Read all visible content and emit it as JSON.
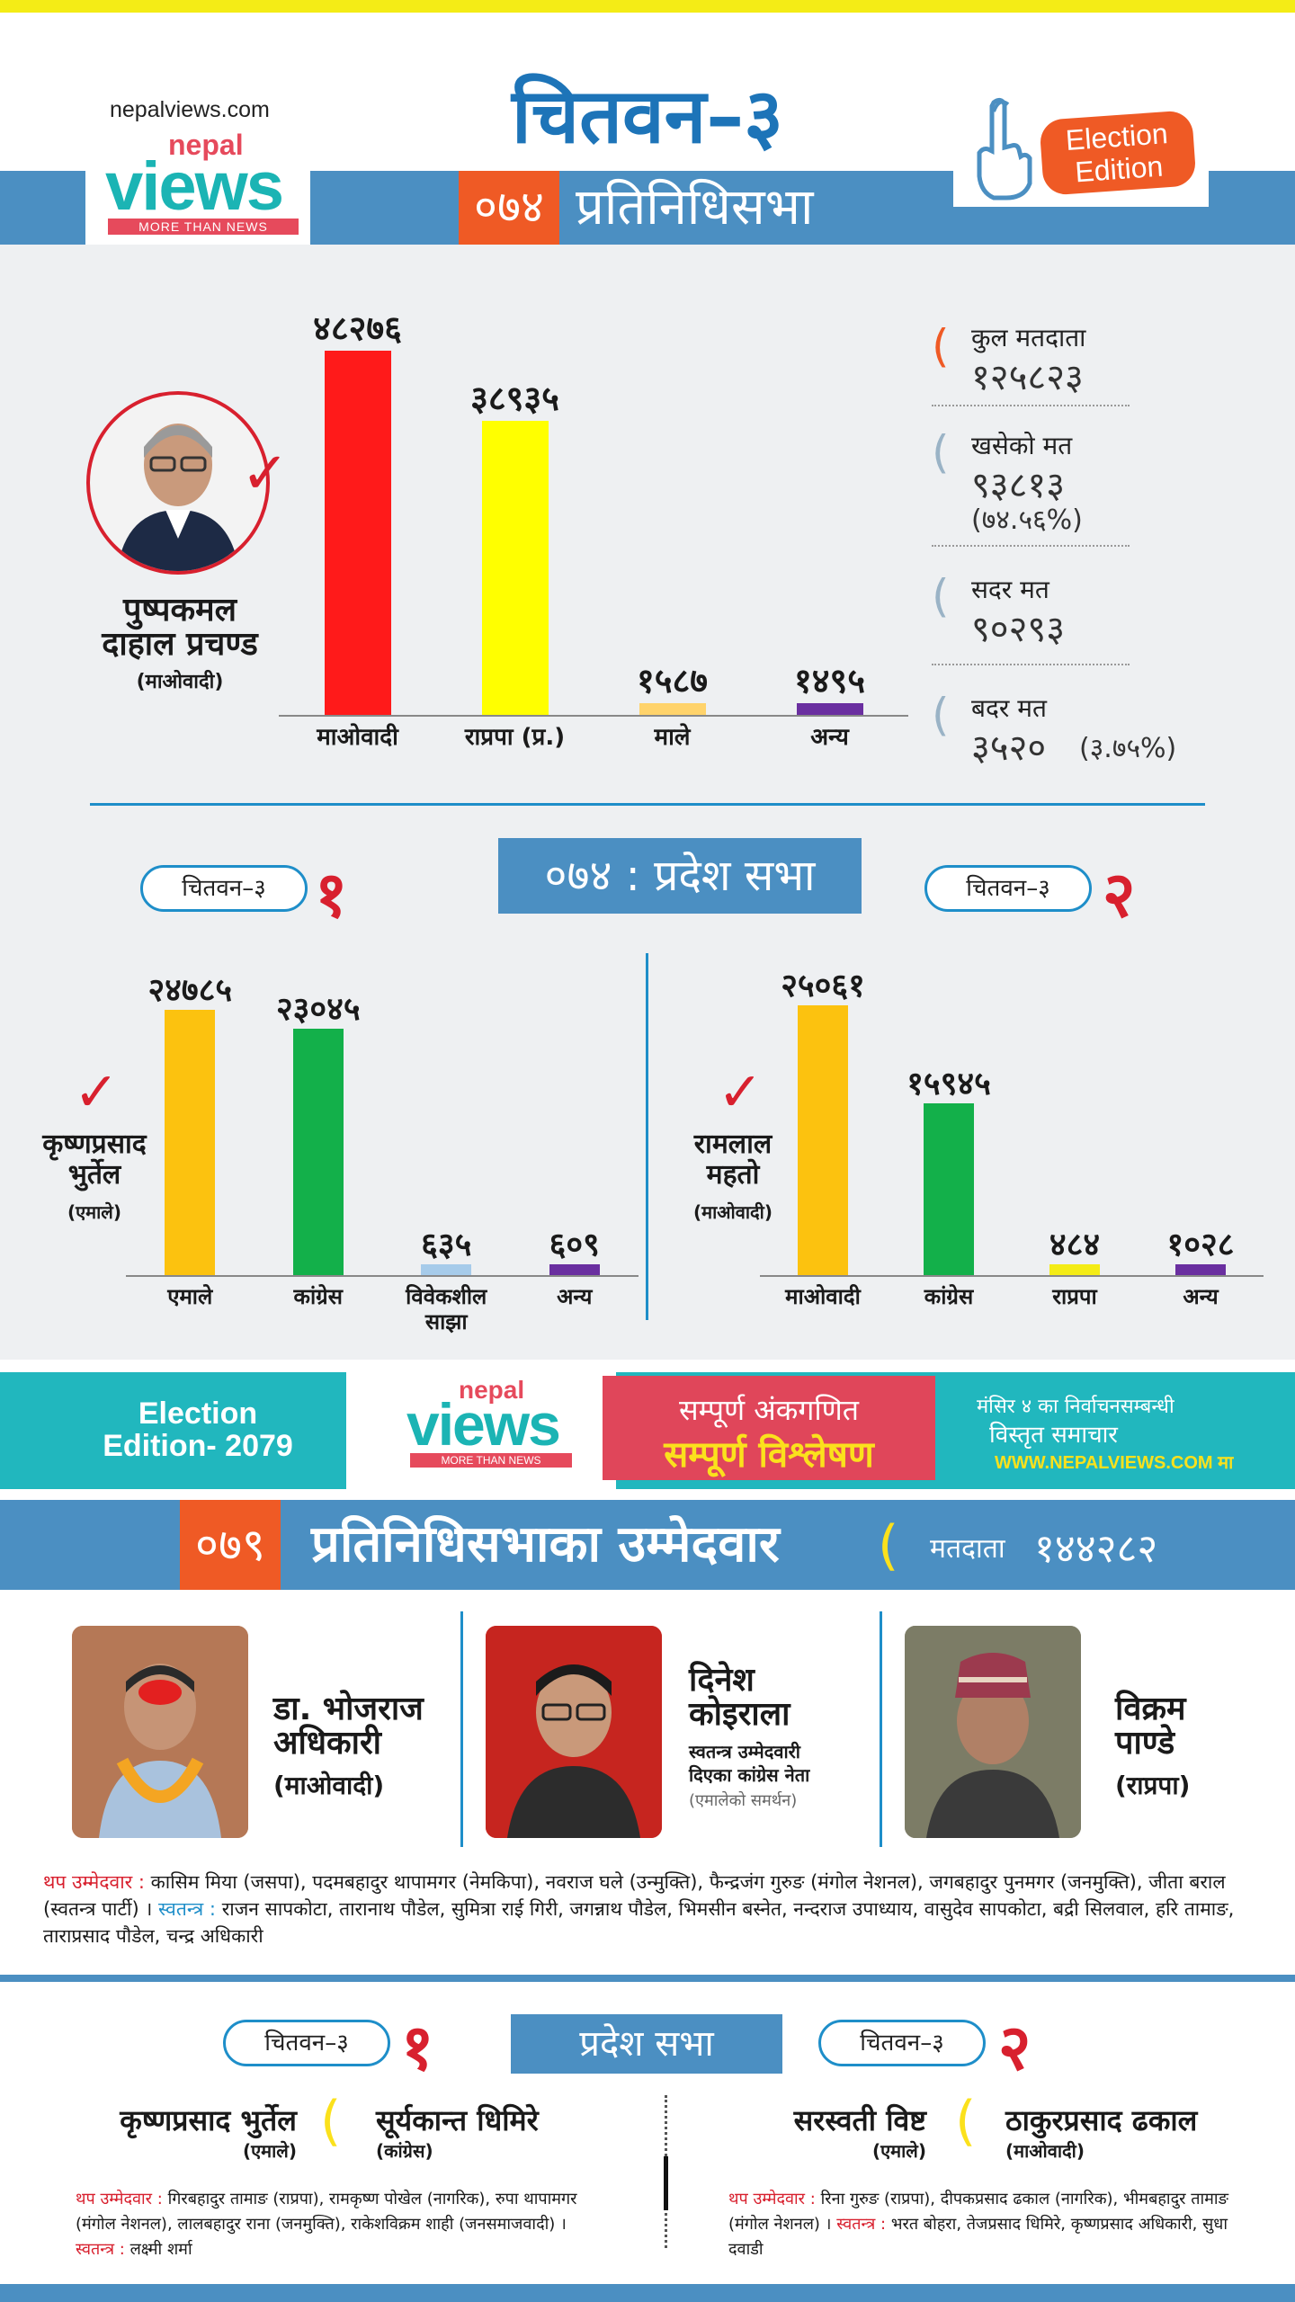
{
  "header": {
    "site_url": "nepalviews.com",
    "logo_top": "nepal",
    "logo_main": "views",
    "logo_tagline": "MORE THAN NEWS",
    "title": "चितवन–३",
    "year": "०७४",
    "section_title": "प्रतिनिधिसभा",
    "badge_line1": "Election",
    "badge_line2": "Edition"
  },
  "hor_2074": {
    "winner_name_line1": "पुष्पकमल",
    "winner_name_line2": "दाहाल प्रचण्ड",
    "winner_party": "(माओवादी)",
    "chart_data": {
      "type": "bar",
      "categories": [
        "माओवादी",
        "राप्रपा (प्र.)",
        "माले",
        "अन्य"
      ],
      "values": [
        48276,
        38935,
        1587,
        1495
      ],
      "value_labels": [
        "४८२७६",
        "३८९३५",
        "१५८७",
        "१४९५"
      ],
      "colors": [
        "#ff1a1a",
        "#ffff00",
        "#ffd36b",
        "#6a2fa0"
      ]
    },
    "stats": {
      "total_voters_label": "कुल मतदाता",
      "total_voters": "१२५८२३",
      "cast_label": "खसेको मत",
      "cast": "९३८१३",
      "cast_pct": "(७४.५६%)",
      "valid_label": "सदर मत",
      "valid": "९०२९३",
      "invalid_label": "बदर मत",
      "invalid": "३५२०",
      "invalid_pct": "(३.७५%)"
    }
  },
  "provincial_2074": {
    "title": "०७४ : प्रदेश सभा",
    "left": {
      "constituency": "चितवन–३",
      "number": "१",
      "winner_line1": "कृष्णप्रसाद",
      "winner_line2": "भुर्तेल",
      "winner_party": "(एमाले)",
      "chart_data": {
        "type": "bar",
        "categories": [
          "एमाले",
          "कांग्रेस",
          "विवेकशील साझा",
          "अन्य"
        ],
        "values": [
          24785,
          23045,
          635,
          609
        ],
        "value_labels": [
          "२४७८५",
          "२३०४५",
          "६३५",
          "६०९"
        ],
        "colors": [
          "#fcc20f",
          "#13b04a",
          "#a6cbea",
          "#6a2fa0"
        ]
      }
    },
    "right": {
      "constituency": "चितवन–३",
      "number": "२",
      "winner_line1": "रामलाल",
      "winner_line2": "महतो",
      "winner_party": "(माओवादी)",
      "chart_data": {
        "type": "bar",
        "categories": [
          "माओवादी",
          "कांग्रेस",
          "राप्रपा",
          "अन्य"
        ],
        "values": [
          25061,
          15945,
          484,
          1028
        ],
        "value_labels": [
          "२५०६१",
          "१५९४५",
          "४८४",
          "१०२८"
        ],
        "colors": [
          "#fcc20f",
          "#13b04a",
          "#f4ec16",
          "#6a2fa0"
        ]
      }
    }
  },
  "banner": {
    "edition_line1": "Election",
    "edition_line2": "Edition- 2079",
    "logo_top": "nepal",
    "logo_main": "views",
    "logo_tagline": "MORE THAN NEWS",
    "headline1": "सम्पूर्ण अंकगणित",
    "headline2": "सम्पूर्ण विश्लेषण",
    "right_line1": "मंसिर ४ का निर्वाचनसम्बन्धी",
    "right_line2": "विस्तृत समाचार",
    "right_url": "WWW.NEPALVIEWS.COM मा"
  },
  "hor_2079": {
    "year": "०७९",
    "title": "प्रतिनिधिसभाका उम्मेदवार",
    "voters_label": "मतदाता",
    "voters": "१४४२८२",
    "candidates": [
      {
        "name_line1": "डा. भोजराज",
        "name_line2": "अधिकारी",
        "party": "(माओवादी)"
      },
      {
        "name_line1": "दिनेश",
        "name_line2": "कोइराला",
        "note_line1": "स्वतन्त्र उम्मेदवारी",
        "note_line2": "दिएका कांग्रेस नेता",
        "support": "(एमालेको समर्थन)"
      },
      {
        "name_line1": "विक्रम",
        "name_line2": "पाण्डे",
        "party": "(राप्रपा)"
      }
    ],
    "other_label": "थप उम्मेदवार :",
    "other_text": "कासिम मिया (जसपा), पदमबहादुर थापामगर (नेमकिपा), नवराज घले (उन्मुक्ति), फैन्द्रजंग गुरुङ (मंगोल नेशनल), जगबहादुर पुनमगर (जनमुक्ति), जीता बराल (स्वतन्त्र पार्टी) ।",
    "independent_label": "स्वतन्त्र :",
    "independent_text": "राजन सापकोटा, तारानाथ पौडेल, सुमित्रा राई गिरी, जगन्नाथ पौडेल, भिमसीन बस्नेत, नन्दराज उपाध्याय, वासुदेव सापकोटा, बद्री सिलवाल, हरि तामाङ, ताराप्रसाद पौडेल, चन्द्र अधिकारी"
  },
  "provincial_2079": {
    "title": "प्रदेश सभा",
    "left": {
      "constituency": "चितवन–३",
      "number": "१",
      "cand1_name": "कृष्णप्रसाद भुर्तेल",
      "cand1_party": "(एमाले)",
      "cand2_name": "सूर्यकान्त धिमिरे",
      "cand2_party": "(कांग्रेस)",
      "other_label": "थप उम्मेदवार :",
      "other_text": "गिरबहादुर तामाङ (राप्रपा), रामकृष्ण पोखेल (नागरिक), रुपा थापामगर (मंगोल नेशनल), लालबहादुर राना (जनमुक्ति), राकेशविक्रम शाही (जनसमाजवादी) ।",
      "independent_label": "स्वतन्त्र :",
      "independent_text": "लक्ष्मी शर्मा"
    },
    "right": {
      "constituency": "चितवन–३",
      "number": "२",
      "cand1_name": "सरस्वती विष्ट",
      "cand1_party": "(एमाले)",
      "cand2_name": "ठाकुरप्रसाद ढकाल",
      "cand2_party": "(माओवादी)",
      "other_label": "थप उम्मेदवार :",
      "other_text": "रिना गुरुङ (राप्रपा), दीपकप्रसाद ढकाल (नागरिक), भीमबहादुर तामाङ (मंगोल नेशनल) ।",
      "independent_label": "स्वतन्त्र :",
      "independent_text": "भरत बोहरा, तेजप्रसाद धिमिरे, कृष्णप्रसाद अधिकारी, सुधा दवाडी"
    }
  }
}
